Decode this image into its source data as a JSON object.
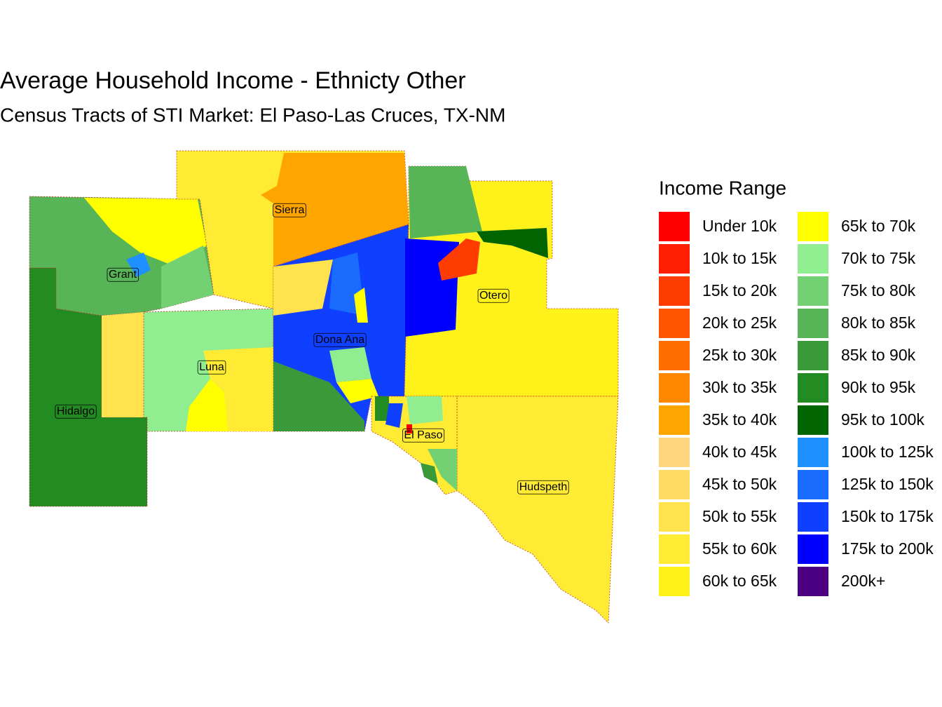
{
  "title": "Average Household Income - Ethnicty Other",
  "subtitle": "Census Tracts of STI Market: El Paso-Las Cruces, TX-NM",
  "legend": {
    "title": "Income Range",
    "items": [
      {
        "label": "Under 10k",
        "color": "#ff0000"
      },
      {
        "label": "10k to 15k",
        "color": "#ff1e00"
      },
      {
        "label": "15k to 20k",
        "color": "#ff3c00"
      },
      {
        "label": "20k to 25k",
        "color": "#ff5500"
      },
      {
        "label": "25k to 30k",
        "color": "#ff6e00"
      },
      {
        "label": "30k to 35k",
        "color": "#ff8800"
      },
      {
        "label": "35k to 40k",
        "color": "#ffa500"
      },
      {
        "label": "40k to 45k",
        "color": "#ffd580"
      },
      {
        "label": "45k to 50k",
        "color": "#ffdb66"
      },
      {
        "label": "50k to 55k",
        "color": "#ffe24d"
      },
      {
        "label": "55k to 60k",
        "color": "#ffeb33"
      },
      {
        "label": "60k to 65k",
        "color": "#fff21a"
      },
      {
        "label": "65k to 70k",
        "color": "#ffff00"
      },
      {
        "label": "70k to 75k",
        "color": "#90ee90"
      },
      {
        "label": "75k to 80k",
        "color": "#73d173"
      },
      {
        "label": "80k to 85k",
        "color": "#57b557"
      },
      {
        "label": "85k to 90k",
        "color": "#3a9a3a"
      },
      {
        "label": "90k to 95k",
        "color": "#228b22"
      },
      {
        "label": "95k to 100k",
        "color": "#006400"
      },
      {
        "label": "100k to 125k",
        "color": "#1e90ff"
      },
      {
        "label": "125k to 150k",
        "color": "#1a6cff"
      },
      {
        "label": "150k to 175k",
        "color": "#1040ff"
      },
      {
        "label": "175k to 200k",
        "color": "#0000ff"
      },
      {
        "label": "200k+",
        "color": "#4b0082"
      }
    ]
  },
  "counties": [
    "Sierra",
    "Grant",
    "Otero",
    "Dona Ana",
    "Luna",
    "Hidalgo",
    "El Paso",
    "Hudspeth"
  ]
}
